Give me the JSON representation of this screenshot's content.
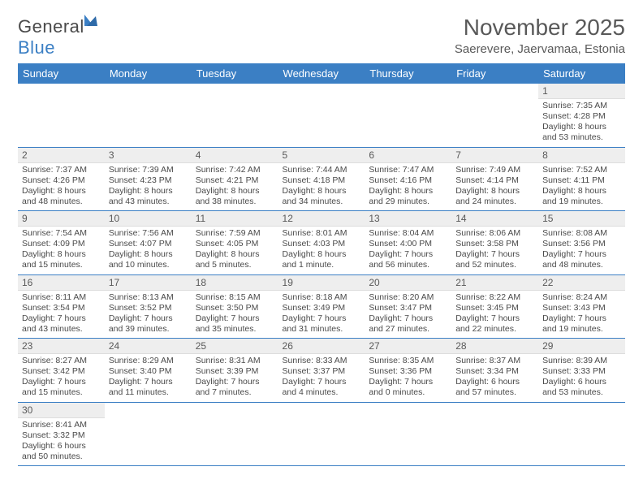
{
  "brand": {
    "part1": "Genera",
    "part2": "Blue",
    "l_letter": "l"
  },
  "header": {
    "title": "November 2025",
    "location": "Saerevere, Jaervamaa, Estonia"
  },
  "colors": {
    "header_bg": "#3b7fc4",
    "header_fg": "#ffffff",
    "daynum_bg": "#eeeeee",
    "row_border": "#3b7fc4",
    "text": "#4a4a4a",
    "title": "#595959",
    "brand_blue": "#3b7fc4"
  },
  "typography": {
    "title_fontsize": 28,
    "location_fontsize": 15,
    "dayhead_fontsize": 13,
    "daynum_fontsize": 12,
    "body_fontsize": 10.5,
    "brand_fontsize": 22
  },
  "calendar": {
    "day_headers": [
      "Sunday",
      "Monday",
      "Tuesday",
      "Wednesday",
      "Thursday",
      "Friday",
      "Saturday"
    ],
    "weeks": [
      [
        null,
        null,
        null,
        null,
        null,
        null,
        {
          "n": "1",
          "sunrise": "7:35 AM",
          "sunset": "4:28 PM",
          "daylight": "8 hours and 53 minutes."
        }
      ],
      [
        {
          "n": "2",
          "sunrise": "7:37 AM",
          "sunset": "4:26 PM",
          "daylight": "8 hours and 48 minutes."
        },
        {
          "n": "3",
          "sunrise": "7:39 AM",
          "sunset": "4:23 PM",
          "daylight": "8 hours and 43 minutes."
        },
        {
          "n": "4",
          "sunrise": "7:42 AM",
          "sunset": "4:21 PM",
          "daylight": "8 hours and 38 minutes."
        },
        {
          "n": "5",
          "sunrise": "7:44 AM",
          "sunset": "4:18 PM",
          "daylight": "8 hours and 34 minutes."
        },
        {
          "n": "6",
          "sunrise": "7:47 AM",
          "sunset": "4:16 PM",
          "daylight": "8 hours and 29 minutes."
        },
        {
          "n": "7",
          "sunrise": "7:49 AM",
          "sunset": "4:14 PM",
          "daylight": "8 hours and 24 minutes."
        },
        {
          "n": "8",
          "sunrise": "7:52 AM",
          "sunset": "4:11 PM",
          "daylight": "8 hours and 19 minutes."
        }
      ],
      [
        {
          "n": "9",
          "sunrise": "7:54 AM",
          "sunset": "4:09 PM",
          "daylight": "8 hours and 15 minutes."
        },
        {
          "n": "10",
          "sunrise": "7:56 AM",
          "sunset": "4:07 PM",
          "daylight": "8 hours and 10 minutes."
        },
        {
          "n": "11",
          "sunrise": "7:59 AM",
          "sunset": "4:05 PM",
          "daylight": "8 hours and 5 minutes."
        },
        {
          "n": "12",
          "sunrise": "8:01 AM",
          "sunset": "4:03 PM",
          "daylight": "8 hours and 1 minute."
        },
        {
          "n": "13",
          "sunrise": "8:04 AM",
          "sunset": "4:00 PM",
          "daylight": "7 hours and 56 minutes."
        },
        {
          "n": "14",
          "sunrise": "8:06 AM",
          "sunset": "3:58 PM",
          "daylight": "7 hours and 52 minutes."
        },
        {
          "n": "15",
          "sunrise": "8:08 AM",
          "sunset": "3:56 PM",
          "daylight": "7 hours and 48 minutes."
        }
      ],
      [
        {
          "n": "16",
          "sunrise": "8:11 AM",
          "sunset": "3:54 PM",
          "daylight": "7 hours and 43 minutes."
        },
        {
          "n": "17",
          "sunrise": "8:13 AM",
          "sunset": "3:52 PM",
          "daylight": "7 hours and 39 minutes."
        },
        {
          "n": "18",
          "sunrise": "8:15 AM",
          "sunset": "3:50 PM",
          "daylight": "7 hours and 35 minutes."
        },
        {
          "n": "19",
          "sunrise": "8:18 AM",
          "sunset": "3:49 PM",
          "daylight": "7 hours and 31 minutes."
        },
        {
          "n": "20",
          "sunrise": "8:20 AM",
          "sunset": "3:47 PM",
          "daylight": "7 hours and 27 minutes."
        },
        {
          "n": "21",
          "sunrise": "8:22 AM",
          "sunset": "3:45 PM",
          "daylight": "7 hours and 22 minutes."
        },
        {
          "n": "22",
          "sunrise": "8:24 AM",
          "sunset": "3:43 PM",
          "daylight": "7 hours and 19 minutes."
        }
      ],
      [
        {
          "n": "23",
          "sunrise": "8:27 AM",
          "sunset": "3:42 PM",
          "daylight": "7 hours and 15 minutes."
        },
        {
          "n": "24",
          "sunrise": "8:29 AM",
          "sunset": "3:40 PM",
          "daylight": "7 hours and 11 minutes."
        },
        {
          "n": "25",
          "sunrise": "8:31 AM",
          "sunset": "3:39 PM",
          "daylight": "7 hours and 7 minutes."
        },
        {
          "n": "26",
          "sunrise": "8:33 AM",
          "sunset": "3:37 PM",
          "daylight": "7 hours and 4 minutes."
        },
        {
          "n": "27",
          "sunrise": "8:35 AM",
          "sunset": "3:36 PM",
          "daylight": "7 hours and 0 minutes."
        },
        {
          "n": "28",
          "sunrise": "8:37 AM",
          "sunset": "3:34 PM",
          "daylight": "6 hours and 57 minutes."
        },
        {
          "n": "29",
          "sunrise": "8:39 AM",
          "sunset": "3:33 PM",
          "daylight": "6 hours and 53 minutes."
        }
      ],
      [
        {
          "n": "30",
          "sunrise": "8:41 AM",
          "sunset": "3:32 PM",
          "daylight": "6 hours and 50 minutes."
        },
        null,
        null,
        null,
        null,
        null,
        null
      ]
    ]
  },
  "labels": {
    "sunrise_prefix": "Sunrise: ",
    "sunset_prefix": "Sunset: ",
    "daylight_prefix": "Daylight: "
  }
}
